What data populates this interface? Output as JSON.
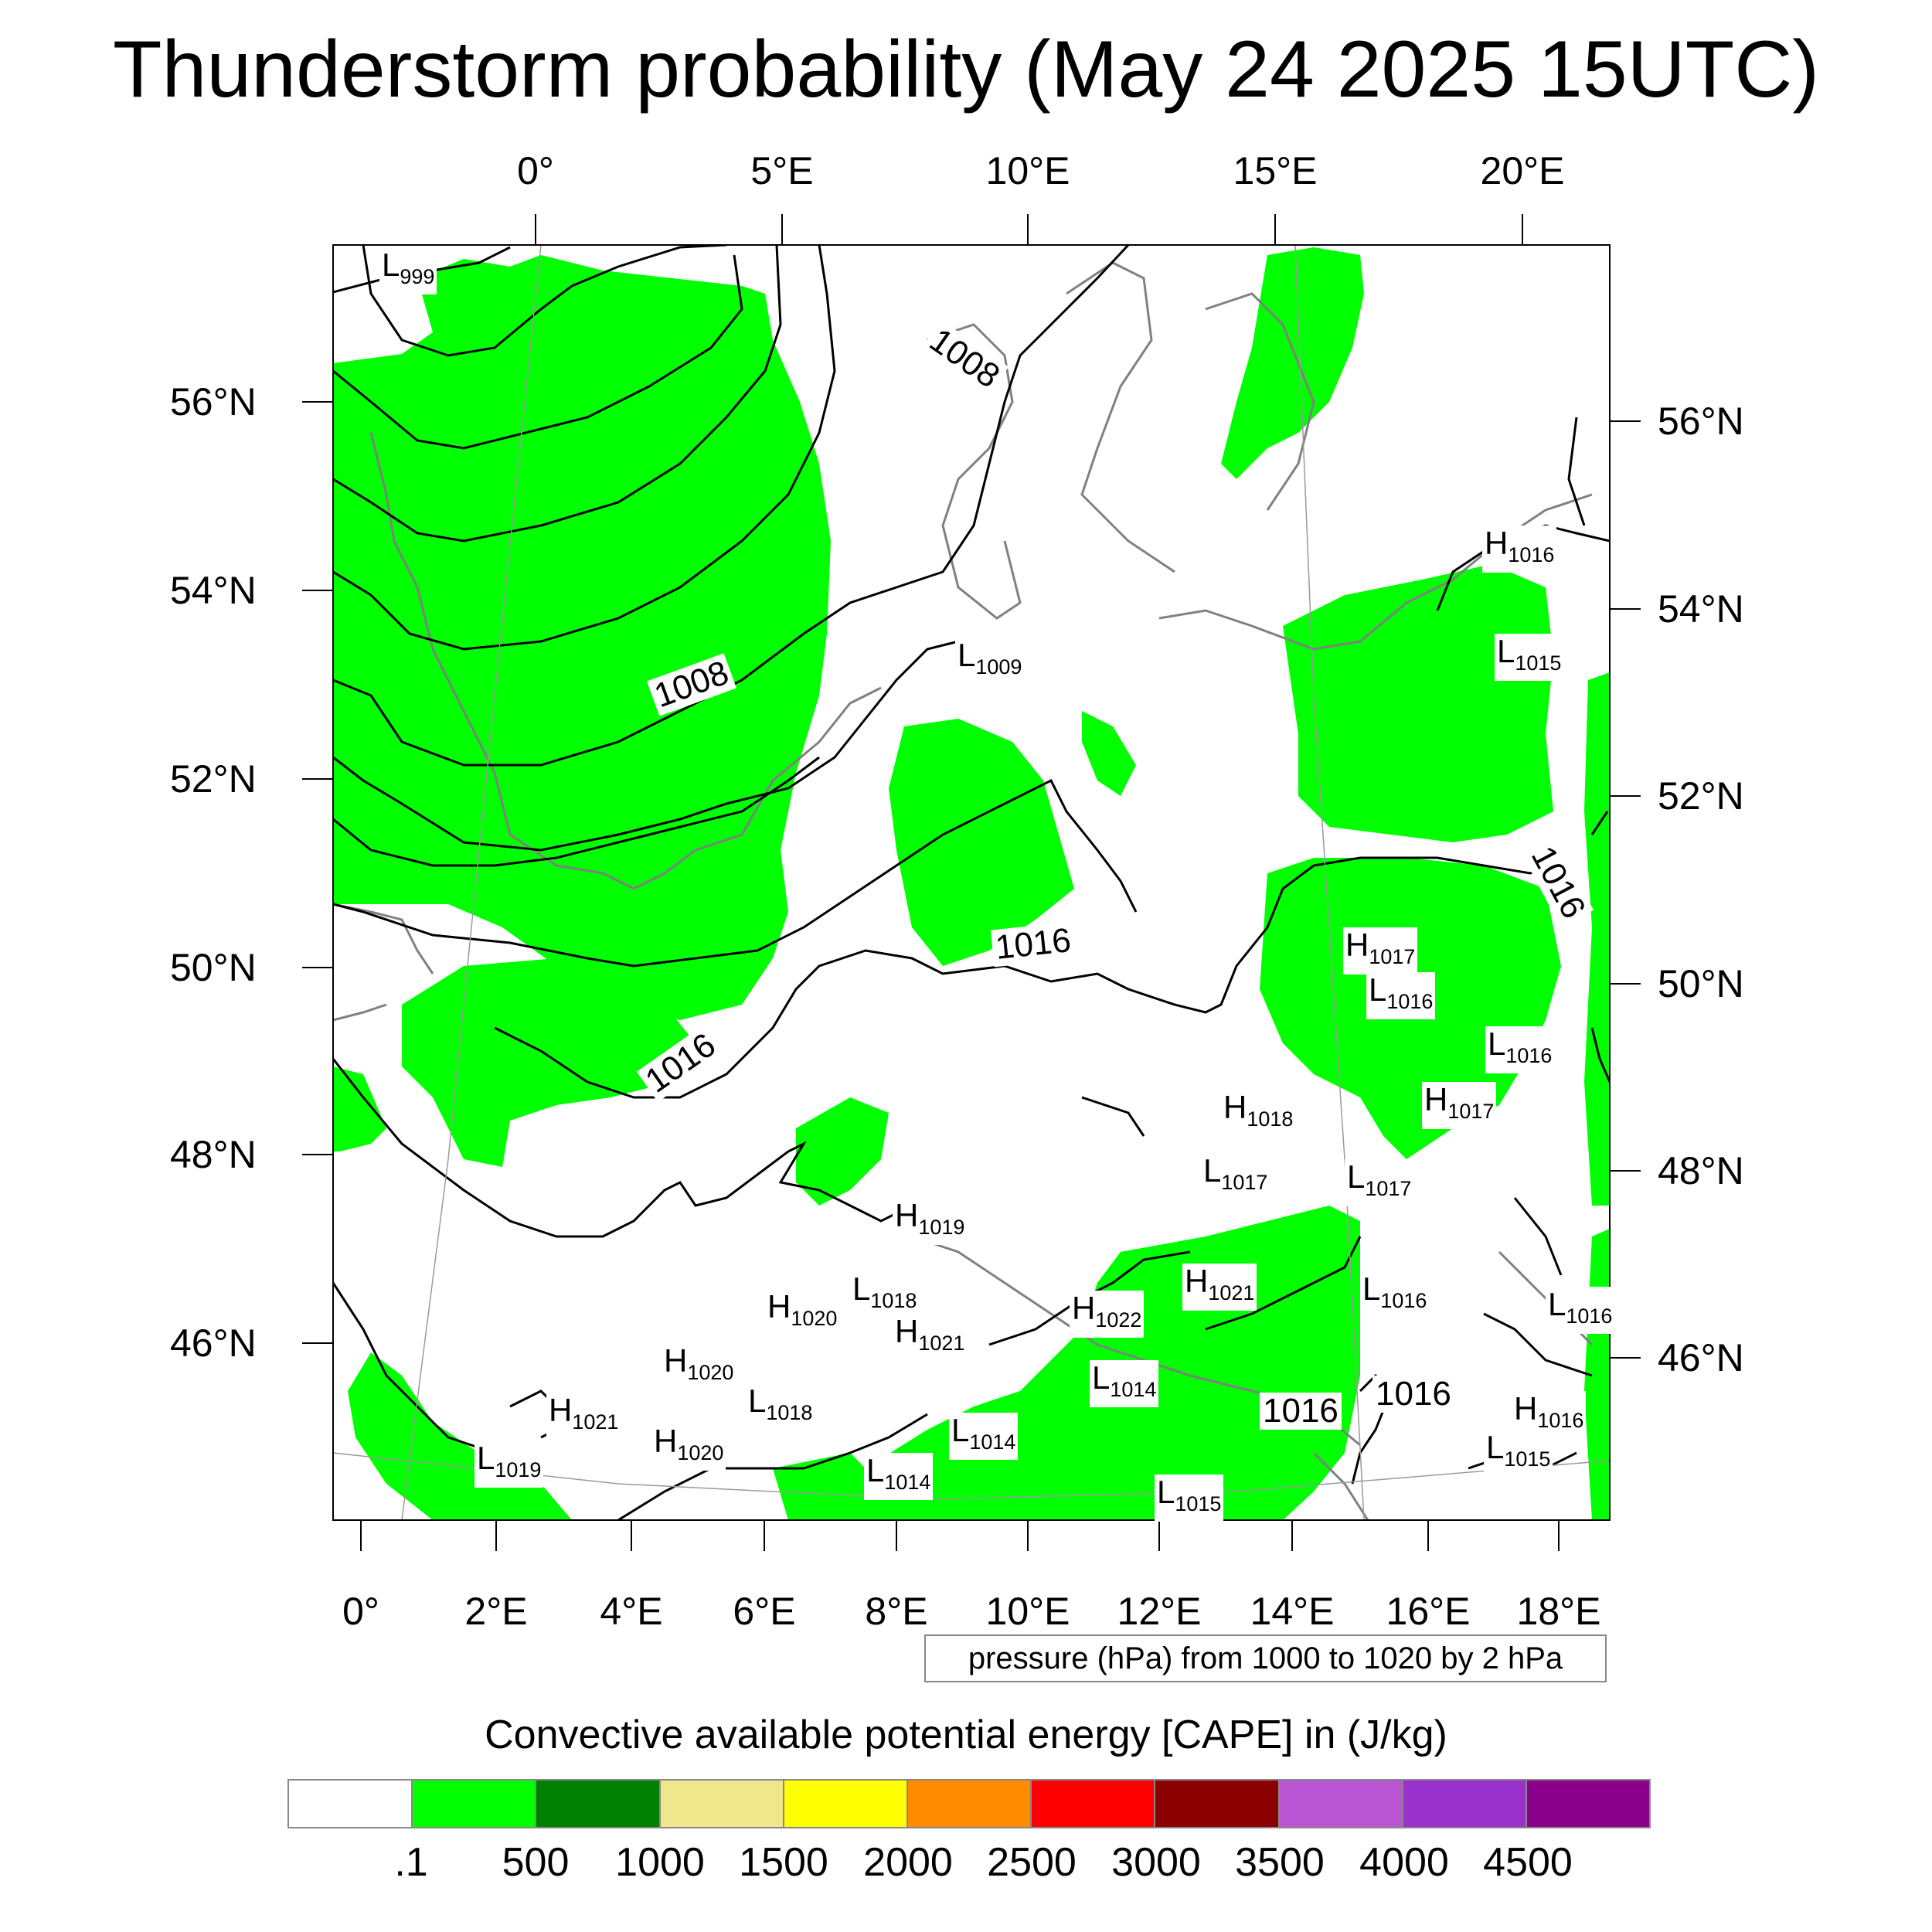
{
  "title": "Thunderstorm probability (May 24 2025 15UTC)",
  "map": {
    "top_lon_labels": [
      "0°",
      "5°E",
      "10°E",
      "15°E",
      "20°E"
    ],
    "bottom_lon_labels": [
      "0°",
      "2°E",
      "4°E",
      "6°E",
      "8°E",
      "10°E",
      "12°E",
      "14°E",
      "16°E",
      "18°E"
    ],
    "left_lat_labels": [
      "56°N",
      "54°N",
      "52°N",
      "50°N",
      "48°N",
      "46°N"
    ],
    "right_lat_labels": [
      "56°N",
      "54°N",
      "52°N",
      "50°N",
      "48°N",
      "46°N"
    ],
    "cape_fill_color": "#00ff00",
    "contour_color": "#000000",
    "coastline_color": "#808080"
  },
  "pressure_centers": [
    {
      "kind": "L",
      "value": "999"
    },
    {
      "kind": "H",
      "value": "1016"
    },
    {
      "kind": "L",
      "value": "1015"
    },
    {
      "kind": "L",
      "value": "1009"
    },
    {
      "kind": "H",
      "value": "1017"
    },
    {
      "kind": "L",
      "value": "1016"
    },
    {
      "kind": "L",
      "value": "1016"
    },
    {
      "kind": "H",
      "value": "1017"
    },
    {
      "kind": "H",
      "value": "1018"
    },
    {
      "kind": "L",
      "value": "1017"
    },
    {
      "kind": "L",
      "value": "1017"
    },
    {
      "kind": "H",
      "value": "1019"
    },
    {
      "kind": "L",
      "value": "1018"
    },
    {
      "kind": "H",
      "value": "1020"
    },
    {
      "kind": "H",
      "value": "1021"
    },
    {
      "kind": "H",
      "value": "1022"
    },
    {
      "kind": "H",
      "value": "1021"
    },
    {
      "kind": "L",
      "value": "1016"
    },
    {
      "kind": "L",
      "value": "1016"
    },
    {
      "kind": "H",
      "value": "1020"
    },
    {
      "kind": "L",
      "value": "1014"
    },
    {
      "kind": "L",
      "value": "1018"
    },
    {
      "kind": "H",
      "value": "1021"
    },
    {
      "kind": "L",
      "value": "1014"
    },
    {
      "kind": "H",
      "value": "1020"
    },
    {
      "kind": "L",
      "value": "1019"
    },
    {
      "kind": "L",
      "value": "1014"
    },
    {
      "kind": "L",
      "value": "1015"
    },
    {
      "kind": "H",
      "value": "1016"
    },
    {
      "kind": "L",
      "value": "1015"
    }
  ],
  "contour_labels": [
    "1008",
    "1008",
    "1016",
    "1016",
    "1016",
    "1016",
    "1016"
  ],
  "contour_info": "pressure (hPa) from 1000 to 1020 by 2 hPa",
  "colorbar": {
    "title": "Convective available potential energy [CAPE] in (J/kg)",
    "colors": [
      "#ffffff",
      "#00ff00",
      "#008000",
      "#f0e68c",
      "#ffff00",
      "#ff8c00",
      "#ff0000",
      "#8b0000",
      "#ba55d3",
      "#9932cc",
      "#8b008b"
    ],
    "tick_labels": [
      ".1",
      "500",
      "1000",
      "1500",
      "2000",
      "2500",
      "3000",
      "3500",
      "4000",
      "4500"
    ]
  }
}
